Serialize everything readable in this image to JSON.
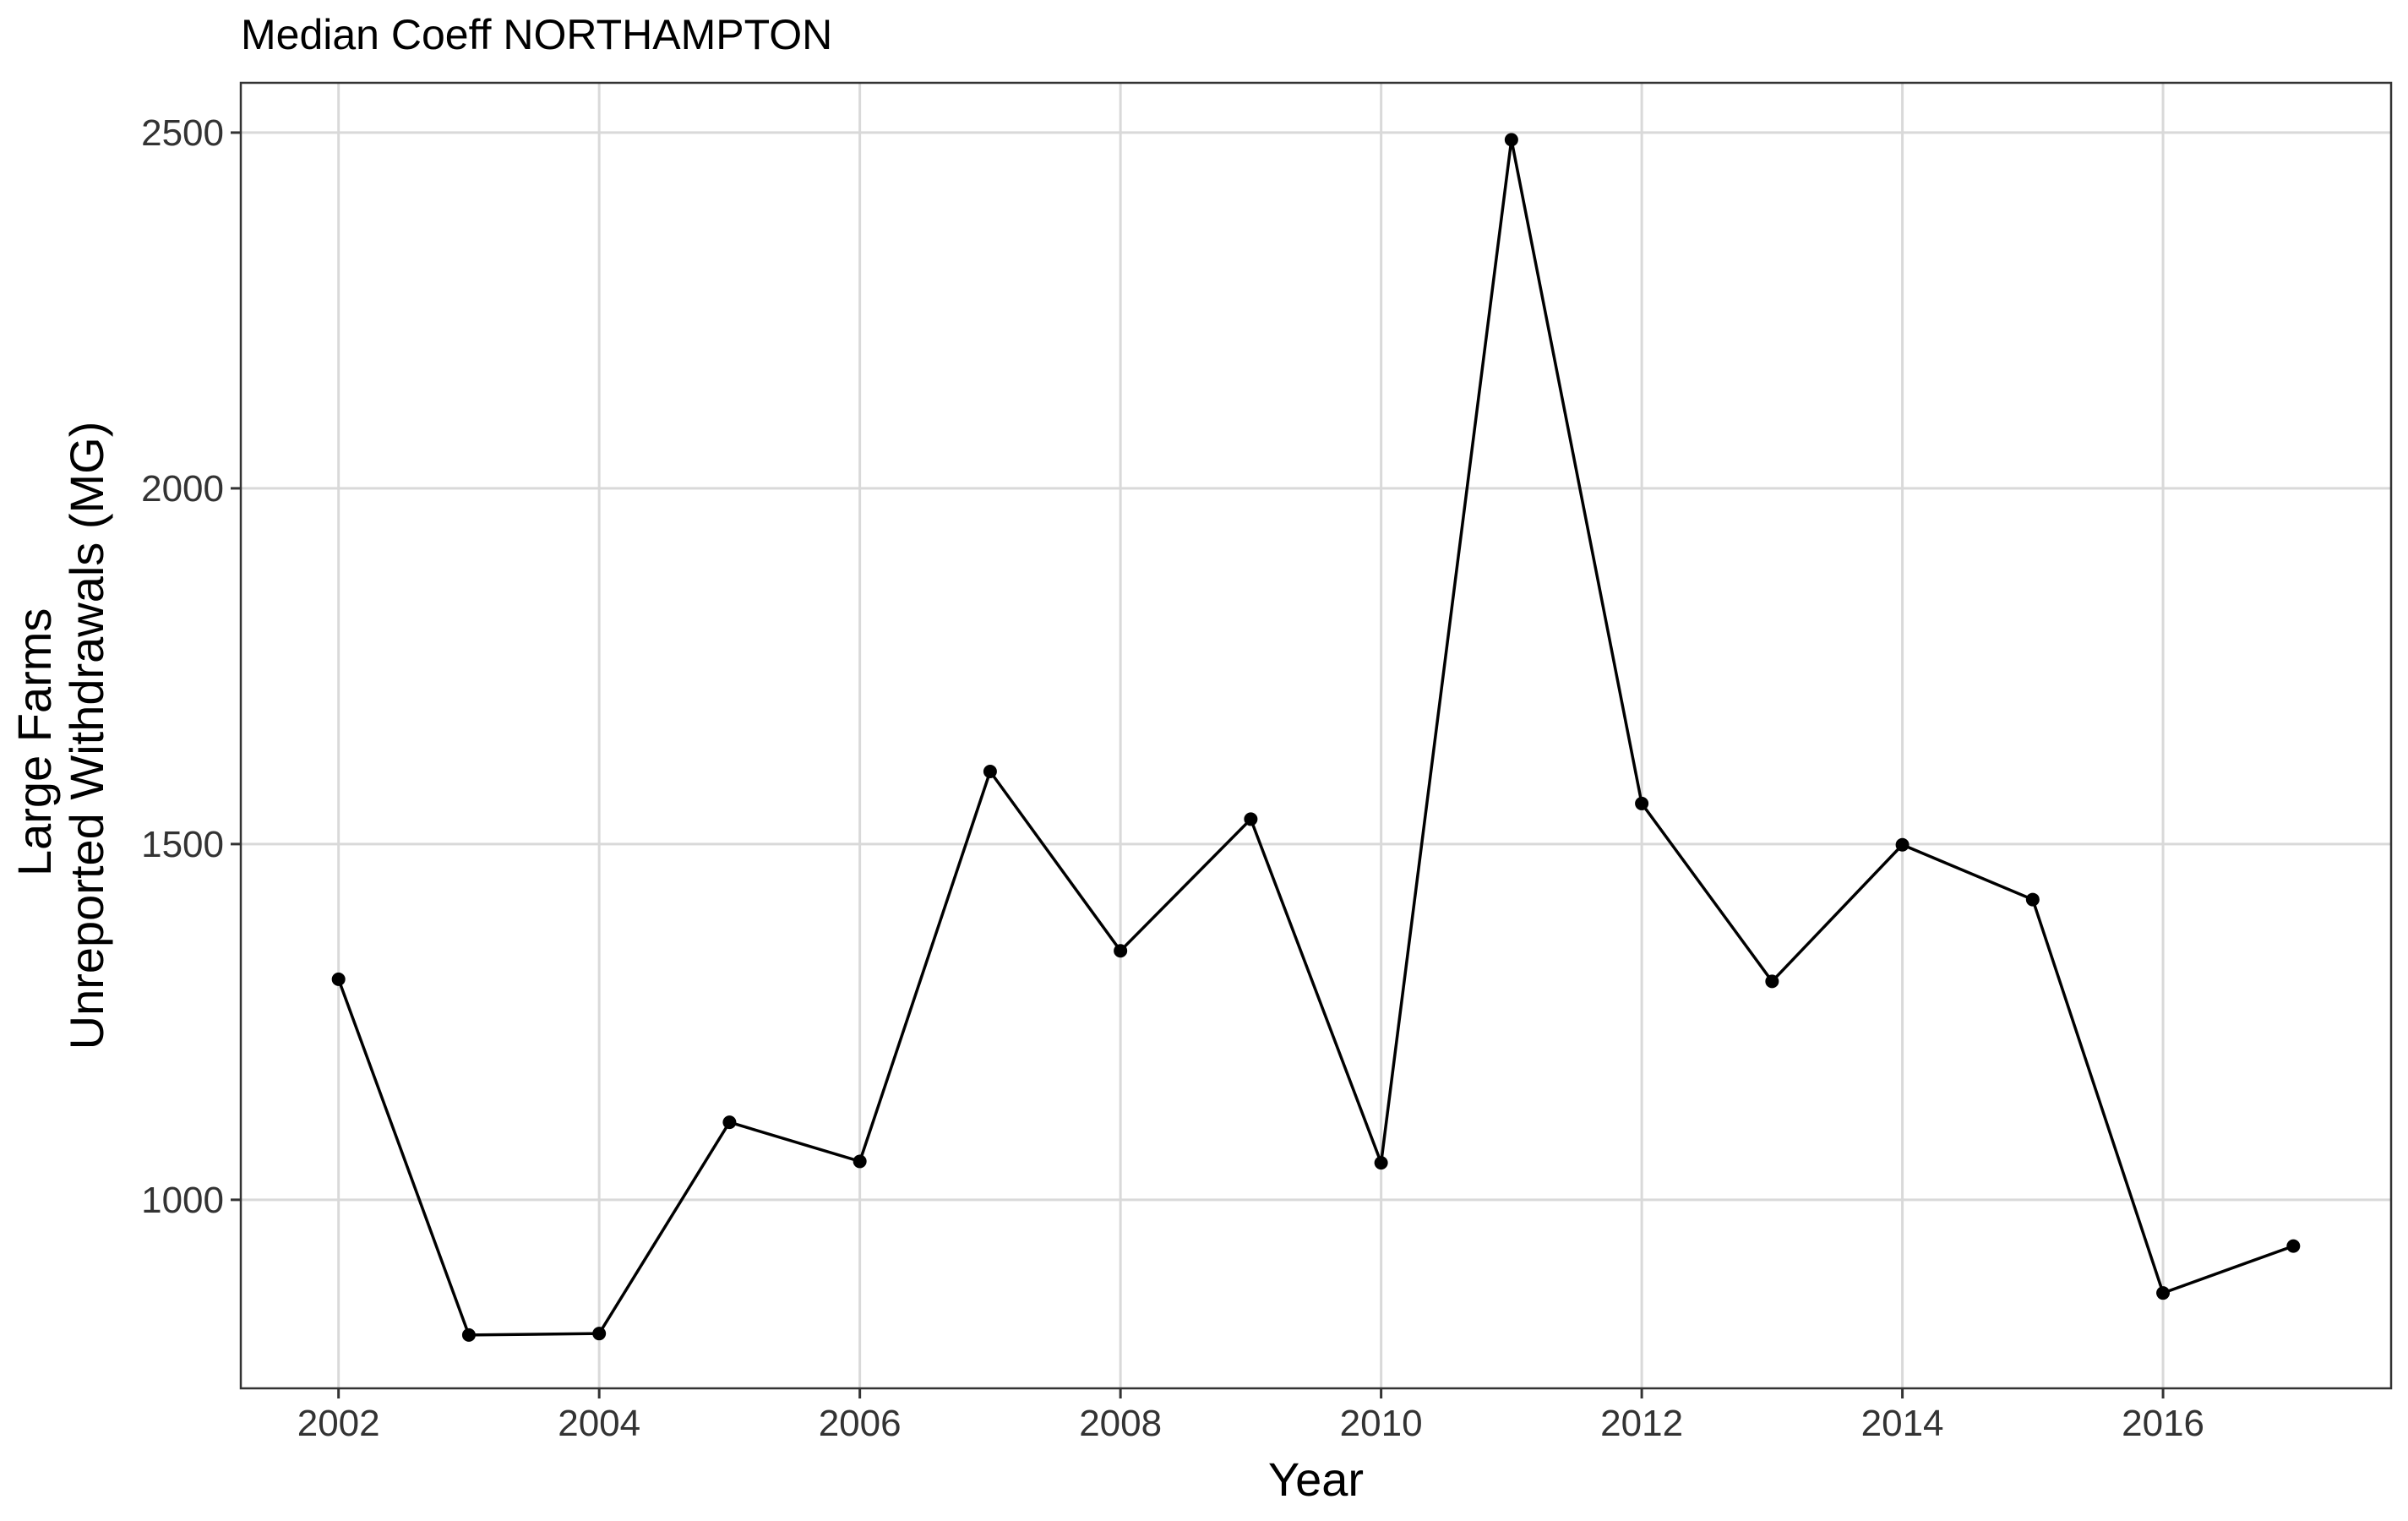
{
  "chart_data": {
    "type": "line",
    "title": "Median Coeff NORTHAMPTON",
    "xlabel": "Year",
    "ylabel": [
      "Large Farms",
      "Unreported Withdrawals (MG)"
    ],
    "xlim": [
      2001.25,
      2017.75
    ],
    "ylim": [
      735,
      2570
    ],
    "xticks": [
      2002,
      2004,
      2006,
      2008,
      2010,
      2012,
      2014,
      2016
    ],
    "yticks": [
      1000,
      1500,
      2000,
      2500
    ],
    "grid": true,
    "legend": "none",
    "series": [
      {
        "color": "#000000",
        "x": [
          2002,
          2003,
          2004,
          2005,
          2006,
          2007,
          2008,
          2009,
          2010,
          2011,
          2012,
          2013,
          2014,
          2015,
          2016,
          2017
        ],
        "y": [
          1310,
          810,
          812,
          1109,
          1054,
          1602,
          1350,
          1535,
          1052,
          2490,
          1557,
          1307,
          1499,
          1422,
          869,
          935
        ]
      }
    ]
  }
}
